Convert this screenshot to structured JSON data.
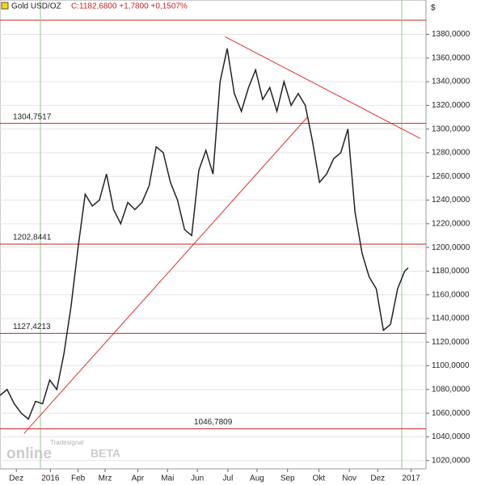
{
  "chart_data": {
    "type": "line",
    "title": "Gold USD/OZ",
    "subtitle": "C:1182,6800 +1,7800 +0,1507%",
    "y_axis_label": "$",
    "logo": {
      "top": "Tradesignal",
      "main": "online",
      "badge": "BETA"
    },
    "x": [
      0,
      1,
      2,
      3,
      4,
      5,
      6,
      7,
      8,
      9,
      10,
      11,
      12,
      13,
      14,
      15,
      16,
      17,
      18,
      19,
      20,
      21,
      22,
      23,
      24,
      25,
      26,
      27,
      28,
      29,
      30,
      31,
      32,
      33,
      34,
      35,
      36,
      37,
      38,
      39,
      40,
      41,
      42,
      43,
      44,
      45,
      46,
      47,
      48,
      49,
      50,
      51,
      52,
      53,
      54,
      55,
      56,
      57,
      57.5
    ],
    "series": [
      {
        "name": "Gold USD/OZ",
        "color": "#222222",
        "values": [
          1075,
          1080,
          1068,
          1060,
          1055,
          1070,
          1068,
          1088,
          1080,
          1110,
          1150,
          1200,
          1245,
          1235,
          1240,
          1262,
          1232,
          1220,
          1238,
          1232,
          1238,
          1252,
          1285,
          1280,
          1255,
          1240,
          1215,
          1210,
          1265,
          1282,
          1262,
          1340,
          1368,
          1330,
          1315,
          1335,
          1350,
          1325,
          1335,
          1315,
          1340,
          1320,
          1330,
          1320,
          1290,
          1255,
          1262,
          1275,
          1280,
          1300,
          1230,
          1195,
          1175,
          1165,
          1130,
          1135,
          1165,
          1180,
          1182.68
        ]
      }
    ],
    "levels": [
      {
        "value": 1304.7517,
        "label": "1304,7517"
      },
      {
        "value": 1202.8441,
        "label": "1202,8441"
      },
      {
        "value": 1127.4213,
        "label": "1127,4213"
      },
      {
        "value": 1046.7809,
        "label": "1046,7809"
      }
    ],
    "trendlines": [
      {
        "x": [
          3.4,
          43.3
        ],
        "y": [
          1043,
          1310
        ],
        "color": "#e03030"
      },
      {
        "x": [
          31.7,
          59.2
        ],
        "y": [
          1378,
          1292
        ],
        "color": "#e03030"
      }
    ],
    "xlim": [
      0,
      60
    ],
    "ylim": [
      1013,
      1409
    ],
    "xticks": [
      {
        "value": 2.3,
        "label": "Dez"
      },
      {
        "value": 7.1,
        "label": "2016"
      },
      {
        "value": 11,
        "label": "Feb"
      },
      {
        "value": 14.8,
        "label": "Mrz"
      },
      {
        "value": 19.4,
        "label": "Apr"
      },
      {
        "value": 23.6,
        "label": "Mai"
      },
      {
        "value": 27.8,
        "label": "Jun"
      },
      {
        "value": 32.1,
        "label": "Jul"
      },
      {
        "value": 36.2,
        "label": "Aug"
      },
      {
        "value": 40.5,
        "label": "Sep"
      },
      {
        "value": 44.9,
        "label": "Okt"
      },
      {
        "value": 49.2,
        "label": "Nov"
      },
      {
        "value": 53.2,
        "label": "Dez"
      },
      {
        "value": 57.9,
        "label": "2017"
      }
    ],
    "yticks": [
      {
        "value": 1020,
        "label": "1020,0000"
      },
      {
        "value": 1040,
        "label": "1040,0000"
      },
      {
        "value": 1060,
        "label": "1060,0000"
      },
      {
        "value": 1080,
        "label": "1080,0000"
      },
      {
        "value": 1100,
        "label": "1100,0000"
      },
      {
        "value": 1120,
        "label": "1120,0000"
      },
      {
        "value": 1140,
        "label": "1140,0000"
      },
      {
        "value": 1160,
        "label": "1160,0000"
      },
      {
        "value": 1180,
        "label": "1180,0000"
      },
      {
        "value": 1200,
        "label": "1200,0000"
      },
      {
        "value": 1220,
        "label": "1220,0000"
      },
      {
        "value": 1240,
        "label": "1240,0000"
      },
      {
        "value": 1260,
        "label": "1260,0000"
      },
      {
        "value": 1280,
        "label": "1280,0000"
      },
      {
        "value": 1300,
        "label": "1300,0000"
      },
      {
        "value": 1320,
        "label": "1320,0000"
      },
      {
        "value": 1340,
        "label": "1340,0000"
      },
      {
        "value": 1360,
        "label": "1360,0000"
      },
      {
        "value": 1380,
        "label": "1380,0000"
      }
    ],
    "grid": true,
    "level_color": "#cc2222"
  }
}
